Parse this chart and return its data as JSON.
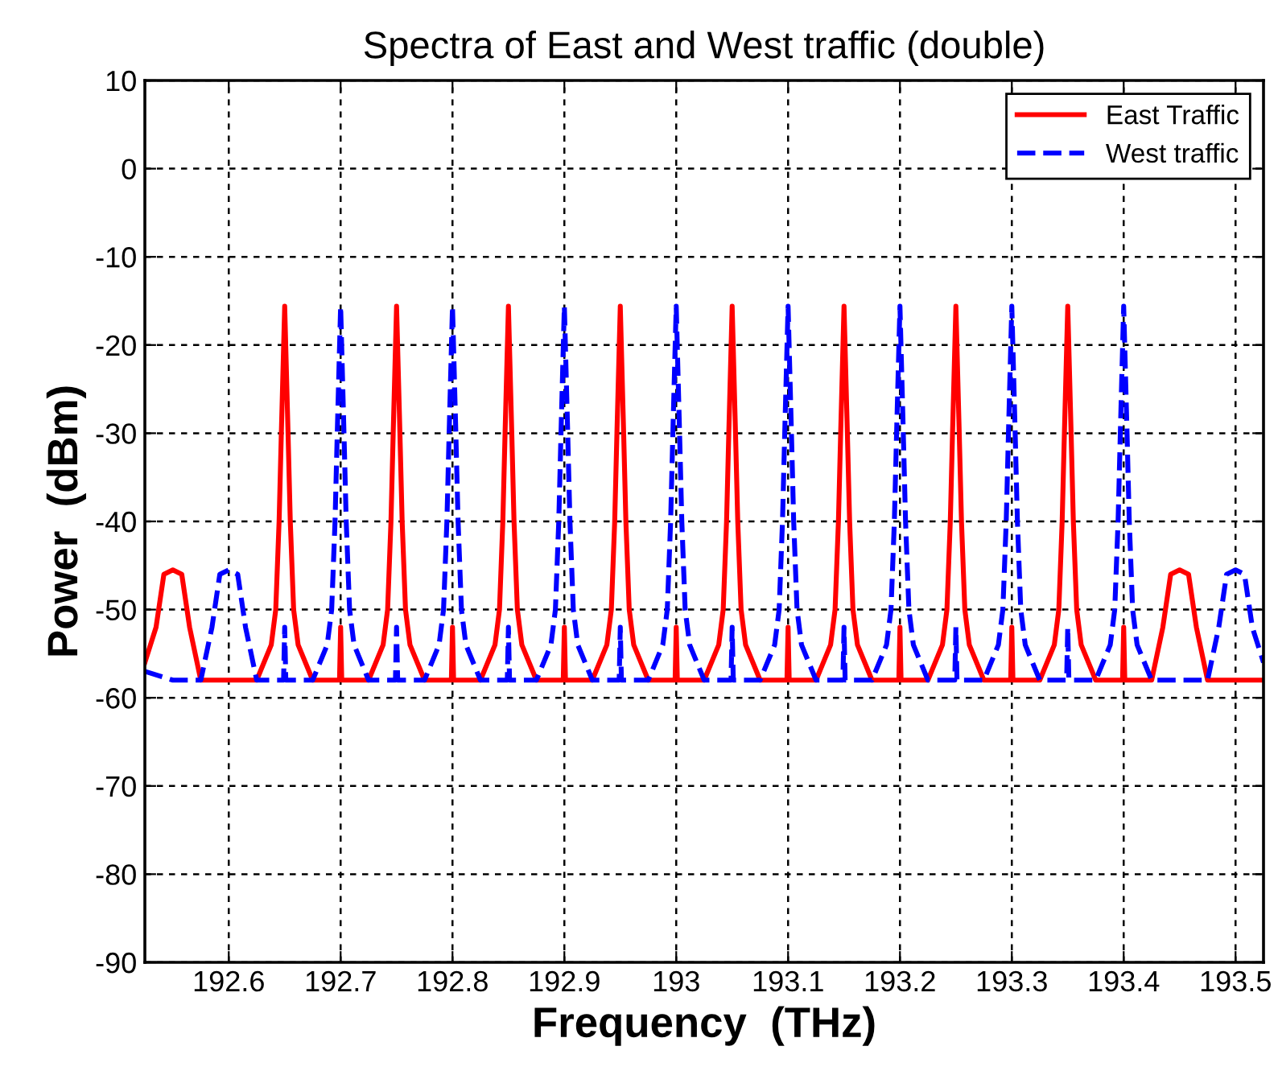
{
  "chart_data": {
    "type": "line",
    "title": "Spectra of East and West traffic (double)",
    "xlabel": "Frequency  (THz)",
    "ylabel": "Power  (dBm)",
    "xlim": [
      192.525,
      193.525
    ],
    "ylim": [
      -90,
      10
    ],
    "xticks": [
      192.6,
      192.7,
      192.8,
      192.9,
      {
        "value": 193.0,
        "label": "193"
      },
      193.1,
      193.2,
      193.3,
      193.4,
      193.5
    ],
    "yticks": [
      -90,
      -80,
      -70,
      -60,
      -50,
      -40,
      -30,
      -20,
      -10,
      0,
      10
    ],
    "grid": true,
    "legend": "top right",
    "marker": "none",
    "series": [
      {
        "name": "East Traffic",
        "color": "#ff0000",
        "line_style": "solid",
        "x": [
          192.525,
          192.535,
          192.542,
          192.55,
          192.558,
          192.565,
          192.575,
          192.625,
          192.638,
          192.642,
          192.645,
          192.647,
          192.65,
          192.653,
          192.655,
          192.658,
          192.662,
          192.675,
          192.699,
          192.7,
          192.701,
          192.725,
          192.738,
          192.742,
          192.745,
          192.747,
          192.75,
          192.753,
          192.755,
          192.758,
          192.762,
          192.775,
          192.799,
          192.8,
          192.801,
          192.825,
          192.838,
          192.842,
          192.845,
          192.847,
          192.85,
          192.853,
          192.855,
          192.858,
          192.862,
          192.875,
          192.899,
          192.9,
          192.901,
          192.925,
          192.938,
          192.942,
          192.945,
          192.947,
          192.95,
          192.953,
          192.955,
          192.958,
          192.962,
          192.975,
          192.999,
          193.0,
          193.001,
          193.025,
          193.038,
          193.042,
          193.045,
          193.047,
          193.05,
          193.053,
          193.055,
          193.058,
          193.062,
          193.075,
          193.099,
          193.1,
          193.101,
          193.125,
          193.138,
          193.142,
          193.145,
          193.147,
          193.15,
          193.153,
          193.155,
          193.158,
          193.162,
          193.175,
          193.199,
          193.2,
          193.201,
          193.225,
          193.238,
          193.242,
          193.245,
          193.247,
          193.25,
          193.253,
          193.255,
          193.258,
          193.262,
          193.275,
          193.299,
          193.3,
          193.301,
          193.325,
          193.338,
          193.342,
          193.345,
          193.347,
          193.35,
          193.353,
          193.355,
          193.358,
          193.362,
          193.375,
          193.399,
          193.4,
          193.401,
          193.425,
          193.435,
          193.442,
          193.45,
          193.458,
          193.465,
          193.475,
          193.525
        ],
        "values": [
          -56,
          -52,
          -46,
          -45.5,
          -46,
          -52,
          -58,
          -58,
          -54,
          -50,
          -40,
          -30,
          -15.6,
          -30,
          -40,
          -50,
          -54,
          -58,
          -58,
          -52,
          -58,
          -58,
          -54,
          -50,
          -40,
          -30,
          -15.6,
          -30,
          -40,
          -50,
          -54,
          -58,
          -58,
          -52,
          -58,
          -58,
          -54,
          -50,
          -40,
          -30,
          -15.6,
          -30,
          -40,
          -50,
          -54,
          -58,
          -58,
          -52,
          -58,
          -58,
          -54,
          -50,
          -40,
          -30,
          -15.6,
          -30,
          -40,
          -50,
          -54,
          -58,
          -58,
          -52,
          -58,
          -58,
          -54,
          -50,
          -40,
          -30,
          -15.6,
          -30,
          -40,
          -50,
          -54,
          -58,
          -58,
          -52,
          -58,
          -58,
          -54,
          -50,
          -40,
          -30,
          -15.6,
          -30,
          -40,
          -50,
          -54,
          -58,
          -58,
          -52,
          -58,
          -58,
          -54,
          -50,
          -40,
          -30,
          -15.6,
          -30,
          -40,
          -50,
          -54,
          -58,
          -58,
          -52,
          -58,
          -58,
          -54,
          -50,
          -40,
          -30,
          -15.6,
          -30,
          -40,
          -50,
          -54,
          -58,
          -58,
          -52,
          -58,
          -58,
          -52,
          -46,
          -45.5,
          -46,
          -52,
          -58,
          -58
        ]
      },
      {
        "name": "West traffic",
        "color": "#0000ff",
        "line_style": "dashed",
        "x": [
          192.525,
          192.55,
          192.575,
          192.585,
          192.592,
          192.6,
          192.608,
          192.615,
          192.625,
          192.649,
          192.65,
          192.651,
          192.675,
          192.688,
          192.692,
          192.695,
          192.697,
          192.7,
          192.703,
          192.705,
          192.708,
          192.712,
          192.725,
          192.749,
          192.75,
          192.751,
          192.775,
          192.788,
          192.792,
          192.795,
          192.797,
          192.8,
          192.803,
          192.805,
          192.808,
          192.812,
          192.825,
          192.849,
          192.85,
          192.851,
          192.875,
          192.888,
          192.892,
          192.895,
          192.897,
          192.9,
          192.903,
          192.905,
          192.908,
          192.912,
          192.925,
          192.949,
          192.95,
          192.951,
          192.975,
          192.988,
          192.992,
          192.995,
          192.997,
          193.0,
          193.003,
          193.005,
          193.008,
          193.012,
          193.025,
          193.049,
          193.05,
          193.051,
          193.075,
          193.088,
          193.092,
          193.095,
          193.097,
          193.1,
          193.103,
          193.105,
          193.108,
          193.112,
          193.125,
          193.149,
          193.15,
          193.151,
          193.175,
          193.188,
          193.192,
          193.195,
          193.197,
          193.2,
          193.203,
          193.205,
          193.208,
          193.212,
          193.225,
          193.249,
          193.25,
          193.251,
          193.275,
          193.288,
          193.292,
          193.295,
          193.297,
          193.3,
          193.303,
          193.305,
          193.308,
          193.312,
          193.325,
          193.349,
          193.35,
          193.351,
          193.375,
          193.388,
          193.392,
          193.395,
          193.397,
          193.4,
          193.403,
          193.405,
          193.408,
          193.412,
          193.425,
          193.45,
          193.475,
          193.485,
          193.492,
          193.5,
          193.508,
          193.515,
          193.525
        ],
        "values": [
          -57,
          -58,
          -58,
          -52,
          -46,
          -45.5,
          -46,
          -52,
          -58,
          -58,
          -52,
          -58,
          -58,
          -54,
          -50,
          -40,
          -30,
          -15.6,
          -30,
          -40,
          -50,
          -54,
          -58,
          -58,
          -52,
          -58,
          -58,
          -54,
          -50,
          -40,
          -30,
          -15.6,
          -30,
          -40,
          -50,
          -54,
          -58,
          -58,
          -52,
          -58,
          -58,
          -54,
          -50,
          -40,
          -30,
          -15.6,
          -30,
          -40,
          -50,
          -54,
          -58,
          -58,
          -52,
          -58,
          -58,
          -54,
          -50,
          -40,
          -30,
          -15.6,
          -30,
          -40,
          -50,
          -54,
          -58,
          -58,
          -52,
          -58,
          -58,
          -54,
          -50,
          -40,
          -30,
          -15.6,
          -30,
          -40,
          -50,
          -54,
          -58,
          -58,
          -52,
          -58,
          -58,
          -54,
          -50,
          -40,
          -30,
          -15.6,
          -30,
          -40,
          -50,
          -54,
          -58,
          -58,
          -52,
          -58,
          -58,
          -54,
          -50,
          -40,
          -30,
          -15.6,
          -30,
          -40,
          -50,
          -54,
          -58,
          -58,
          -52,
          -58,
          -58,
          -54,
          -50,
          -40,
          -30,
          -15.6,
          -30,
          -40,
          -50,
          -54,
          -58,
          -58,
          -58,
          -52,
          -46,
          -45.5,
          -46,
          -52,
          -56
        ]
      }
    ]
  }
}
